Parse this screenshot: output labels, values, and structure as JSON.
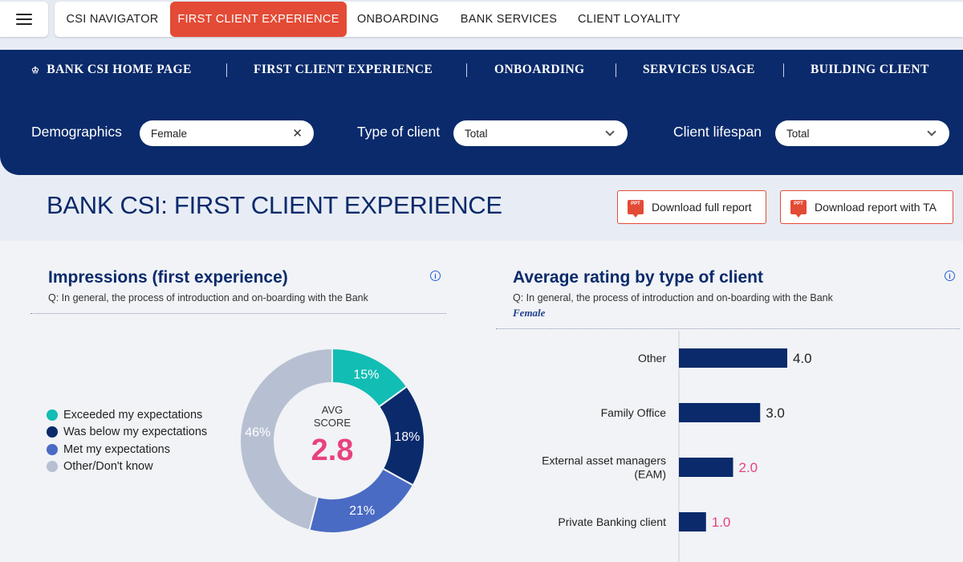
{
  "topbar": {
    "tabs": [
      {
        "label": "CSI NAVIGATOR",
        "active": false
      },
      {
        "label": "FIRST CLIENT EXPERIENCE",
        "active": true
      },
      {
        "label": "ONBOARDING",
        "active": false
      },
      {
        "label": "BANK SERVICES",
        "active": false
      },
      {
        "label": "CLIENT LOYALITY",
        "active": false
      }
    ]
  },
  "subnav": {
    "items": [
      "BANK CSI HOME PAGE",
      "FIRST CLIENT EXPERIENCE",
      "ONBOARDING",
      "SERVICES USAGE",
      "BUILDING CLIENT"
    ]
  },
  "filters": {
    "demographics": {
      "label": "Demographics",
      "value": "Female"
    },
    "type_of_client": {
      "label": "Type of client",
      "value": "Total"
    },
    "client_lifespan": {
      "label": "Client lifespan",
      "value": "Total"
    }
  },
  "header": {
    "title": "BANK CSI: FIRST CLIENT EXPERIENCE",
    "download_full": "Download full report",
    "download_ta": "Download report with TA",
    "ppt_badge": "PPT"
  },
  "impressions": {
    "title": "Impressions (first experience)",
    "question": "Q: In general, the process of introduction and on-boarding with the Bank",
    "avg_label_1": "AVG",
    "avg_label_2": "SCORE",
    "avg_value": "2.8"
  },
  "rating": {
    "title": "Average rating by type of client",
    "question": "Q: In general, the process of introduction and on-boarding with the Bank",
    "filter": "Female"
  },
  "colors": {
    "navy": "#0a2a6b",
    "accent_red": "#e34b36",
    "pink": "#e8417e"
  },
  "chart_data": [
    {
      "type": "pie",
      "categories": [
        "Exceeded my expectations",
        "Was below my expectations",
        "Met my expectations",
        "Other/Don't know"
      ],
      "values": [
        15,
        18,
        21,
        46
      ],
      "labels": [
        "15%",
        "18%",
        "21%",
        "46%"
      ],
      "colors": [
        "#12bdb4",
        "#0a2a6b",
        "#4a6bc4",
        "#b7c0d2"
      ],
      "title": "Impressions (first experience)",
      "legend": "left"
    },
    {
      "type": "bar",
      "orientation": "horizontal",
      "categories": [
        "Other",
        "Family Office",
        "External asset managers (EAM)",
        "Private Banking client"
      ],
      "category_lines": [
        [
          "Other"
        ],
        [
          "Family Office"
        ],
        [
          "External asset managers",
          "(EAM)"
        ],
        [
          "Private Banking client"
        ]
      ],
      "values": [
        4.0,
        3.0,
        2.0,
        1.0
      ],
      "labels": [
        "4.0",
        "3.0",
        "2.0",
        "1.0"
      ],
      "label_colors": [
        "#222222",
        "#222222",
        "#e8417e",
        "#e8417e"
      ],
      "bar_color": "#0a2a6b",
      "xlim": [
        0,
        5
      ],
      "title": "Average rating by type of client"
    }
  ]
}
